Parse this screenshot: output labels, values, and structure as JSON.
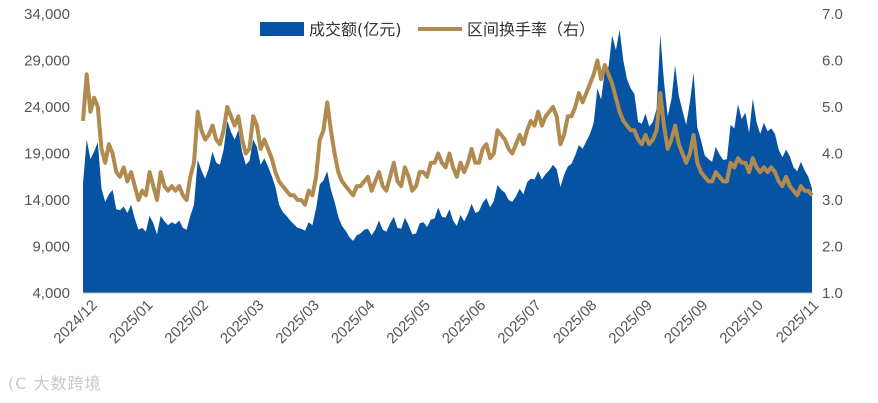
{
  "chart_data": {
    "type": "area+line",
    "title": "",
    "legend": {
      "placement": "top-center",
      "area_label": "成交额(亿元)",
      "line_label": "区间换手率（右）"
    },
    "colors": {
      "area": "#0652a3",
      "line": "#b18a4f",
      "text": "#555555"
    },
    "y_left": {
      "min": 4000,
      "max": 34000,
      "ticks": [
        "4,000",
        "9,000",
        "14,000",
        "19,000",
        "24,000",
        "29,000",
        "34,000"
      ]
    },
    "y_right": {
      "min": 1.0,
      "max": 7.0,
      "ticks": [
        "1.0",
        "2.0",
        "3.0",
        "4.0",
        "5.0",
        "6.0",
        "7.0"
      ]
    },
    "x_tick_labels": [
      "2024/12",
      "2025/01",
      "2025/02",
      "2025/03",
      "2025/03",
      "2025/04",
      "2025/05",
      "2025/06",
      "2025/07",
      "2025/08",
      "2025/09",
      "2025/09",
      "2025/10",
      "2025/11"
    ],
    "turnover_series": {
      "name": "成交额(亿元)",
      "values": [
        15800,
        20500,
        18400,
        19200,
        20200,
        15200,
        13800,
        14600,
        15100,
        13000,
        12900,
        13300,
        12600,
        13500,
        12000,
        10800,
        11000,
        10600,
        12300,
        11500,
        10300,
        12300,
        11700,
        11300,
        11600,
        11400,
        11800,
        11000,
        10800,
        12300,
        13500,
        18300,
        17200,
        16300,
        17400,
        19200,
        18000,
        17800,
        19400,
        22500,
        21300,
        20500,
        21500,
        19200,
        17800,
        18200,
        20500,
        19700,
        17800,
        18500,
        17600,
        16600,
        15400,
        13500,
        12700,
        12300,
        11800,
        11400,
        11000,
        10900,
        10700,
        11600,
        11300,
        13100,
        15700,
        16100,
        17100,
        15100,
        13800,
        12200,
        11200,
        10700,
        10000,
        9600,
        10200,
        10400,
        10800,
        10900,
        10200,
        10800,
        11800,
        10800,
        10600,
        11500,
        12200,
        11000,
        10900,
        12100,
        11300,
        10300,
        10400,
        11500,
        11600,
        11100,
        11900,
        12000,
        13200,
        12200,
        12100,
        13000,
        11800,
        11200,
        12400,
        11700,
        12500,
        13600,
        12600,
        12800,
        13700,
        14200,
        13200,
        13900,
        15600,
        15100,
        14800,
        14000,
        13800,
        14400,
        15200,
        14600,
        15900,
        16300,
        16200,
        17100,
        16200,
        16800,
        17200,
        17800,
        17300,
        15400,
        16700,
        17600,
        17900,
        18800,
        19900,
        19500,
        20300,
        21100,
        22300,
        26000,
        24800,
        27900,
        28300,
        31700,
        30100,
        32300,
        29000,
        27000,
        26000,
        25400,
        22400,
        22200,
        23300,
        21900,
        22400,
        23800,
        31800,
        26700,
        23000,
        24800,
        28500,
        25200,
        23600,
        22100,
        24500,
        27700,
        21800,
        20400,
        18800,
        18400,
        18100,
        19700,
        18900,
        18300,
        18400,
        22100,
        21700,
        24300,
        22700,
        23400,
        21200,
        24900,
        22400,
        21100,
        22300,
        21400,
        21700,
        21100,
        19400,
        18600,
        19400,
        18700,
        17500,
        17100,
        18100,
        17200,
        16500,
        15200
      ]
    },
    "turnover_rate_series": {
      "name": "区间换手率（右）",
      "values": [
        4.7,
        5.7,
        4.9,
        5.2,
        5.0,
        4.1,
        3.8,
        4.2,
        4.0,
        3.6,
        3.5,
        3.7,
        3.4,
        3.6,
        3.3,
        3.0,
        3.2,
        3.1,
        3.6,
        3.3,
        3.0,
        3.6,
        3.3,
        3.2,
        3.3,
        3.2,
        3.3,
        3.1,
        3.0,
        3.5,
        3.8,
        4.9,
        4.5,
        4.3,
        4.4,
        4.6,
        4.3,
        4.2,
        4.5,
        5.0,
        4.8,
        4.6,
        4.8,
        4.3,
        4.0,
        4.1,
        4.8,
        4.6,
        4.1,
        4.3,
        4.1,
        3.9,
        3.6,
        3.4,
        3.3,
        3.2,
        3.1,
        3.1,
        3.0,
        3.0,
        2.9,
        3.2,
        3.1,
        3.5,
        4.3,
        4.5,
        5.1,
        4.5,
        4.0,
        3.6,
        3.4,
        3.3,
        3.2,
        3.1,
        3.3,
        3.3,
        3.4,
        3.5,
        3.2,
        3.4,
        3.6,
        3.3,
        3.2,
        3.5,
        3.8,
        3.4,
        3.3,
        3.7,
        3.5,
        3.2,
        3.3,
        3.6,
        3.6,
        3.5,
        3.8,
        3.8,
        4.0,
        3.8,
        3.7,
        4.0,
        3.7,
        3.5,
        3.8,
        3.6,
        3.8,
        4.1,
        3.8,
        3.8,
        4.1,
        4.2,
        3.9,
        4.0,
        4.5,
        4.4,
        4.3,
        4.1,
        4.0,
        4.2,
        4.4,
        4.2,
        4.5,
        4.7,
        4.6,
        4.9,
        4.6,
        4.8,
        4.9,
        5.0,
        4.8,
        4.2,
        4.4,
        4.8,
        4.8,
        5.0,
        5.3,
        5.1,
        5.3,
        5.5,
        5.7,
        6.0,
        5.6,
        5.9,
        5.7,
        5.5,
        5.2,
        4.9,
        4.7,
        4.6,
        4.5,
        4.5,
        4.3,
        4.2,
        4.4,
        4.2,
        4.3,
        4.5,
        5.3,
        4.6,
        4.1,
        4.3,
        4.6,
        4.2,
        4.0,
        3.8,
        4.0,
        4.4,
        3.8,
        3.6,
        3.5,
        3.4,
        3.4,
        3.6,
        3.5,
        3.4,
        3.4,
        3.8,
        3.7,
        3.9,
        3.8,
        3.8,
        3.6,
        3.9,
        3.7,
        3.6,
        3.7,
        3.6,
        3.7,
        3.6,
        3.4,
        3.3,
        3.5,
        3.3,
        3.2,
        3.1,
        3.3,
        3.2,
        3.2,
        3.1
      ]
    }
  },
  "watermark": {
    "text": "大数跨境",
    "logo_text": "(C"
  }
}
